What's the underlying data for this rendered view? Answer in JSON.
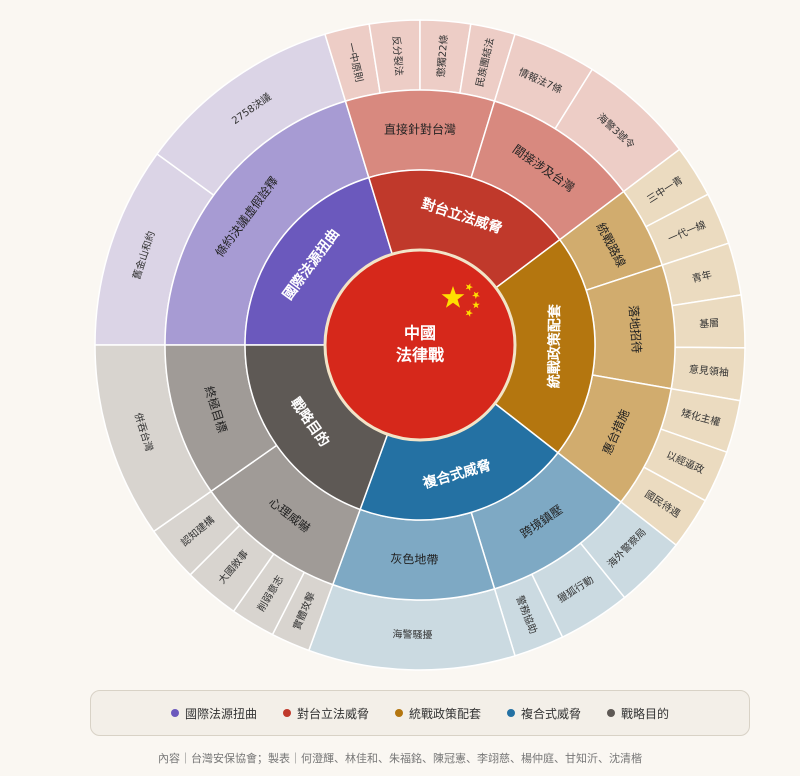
{
  "center": {
    "lines": [
      "中國",
      "法律戰"
    ]
  },
  "categories": [
    {
      "label": "國際法源扭曲",
      "color": "#6b59bd",
      "children": [
        {
          "label": "條約決議虛假詮釋",
          "children": [
            "舊金山和約",
            "2758決議"
          ]
        }
      ]
    },
    {
      "label": "對台立法威脅",
      "color": "#c0392b",
      "children": [
        {
          "label": "直接針對台灣",
          "children": [
            "一中原則",
            "反分裂法",
            "懲獨22條",
            "民族團結法"
          ]
        },
        {
          "label": "間接涉及台灣",
          "children": [
            "情報法7條",
            "海警3號令"
          ]
        }
      ]
    },
    {
      "label": "統戰政策配套",
      "color": "#b4760f",
      "children": [
        {
          "label": "統戰路線",
          "children": [
            "三中一青",
            "一代一線"
          ]
        },
        {
          "label": "落地招待",
          "children": [
            "青年",
            "基層",
            "意見領袖"
          ]
        },
        {
          "label": "惠台措施",
          "children": [
            "矮化主權",
            "以經逼政",
            "國民待遇"
          ]
        }
      ]
    },
    {
      "label": "複合式威脅",
      "color": "#2471a3",
      "children": [
        {
          "label": "跨境鎮壓",
          "children": [
            "海外警察局",
            "獵狐行動",
            "警務協助"
          ]
        },
        {
          "label": "灰色地帶",
          "children": [
            "海警騷擾"
          ]
        }
      ]
    },
    {
      "label": "戰略目的",
      "color": "#5e5955",
      "children": [
        {
          "label": "心理威嚇",
          "children": [
            "實體攻擊",
            "削弱意志",
            "大國敘事",
            "認知建構"
          ]
        },
        {
          "label": "終極目標",
          "children": [
            "併吞台灣"
          ]
        }
      ]
    }
  ],
  "credit": "內容｜台灣安保協會；製表｜何澄輝、林佳和、朱福銘、陳冠憲、李翊慈、楊仲庭、甘知沂、沈清楷"
}
